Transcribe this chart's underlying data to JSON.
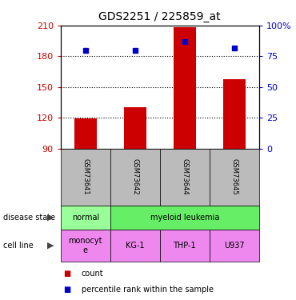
{
  "title": "GDS2251 / 225859_at",
  "samples": [
    "GSM73641",
    "GSM73642",
    "GSM73644",
    "GSM73645"
  ],
  "counts": [
    119,
    130,
    208,
    158
  ],
  "percentiles": [
    80,
    80,
    87,
    82
  ],
  "ymin": 90,
  "ymax": 210,
  "yticks": [
    90,
    120,
    150,
    180,
    210
  ],
  "y2ticks": [
    0,
    25,
    50,
    75,
    100
  ],
  "y2labels": [
    "0",
    "25",
    "50",
    "75",
    "100%"
  ],
  "bar_color": "#cc0000",
  "dot_color": "#0000cc",
  "disease_state_spans": [
    [
      0,
      1,
      "normal"
    ],
    [
      1,
      4,
      "myeloid leukemia"
    ]
  ],
  "disease_state_colors": [
    "#99ff99",
    "#66ee66"
  ],
  "cell_line_labels": [
    "monocyt\ne",
    "KG-1",
    "THP-1",
    "U937"
  ],
  "cell_line_color": "#ee88ee",
  "sample_bg_color": "#bbbbbb",
  "legend_count_color": "#cc0000",
  "legend_pct_color": "#0000cc",
  "arrow_color": "#444444",
  "left_label_disease": "disease state",
  "left_label_cell": "cell line"
}
